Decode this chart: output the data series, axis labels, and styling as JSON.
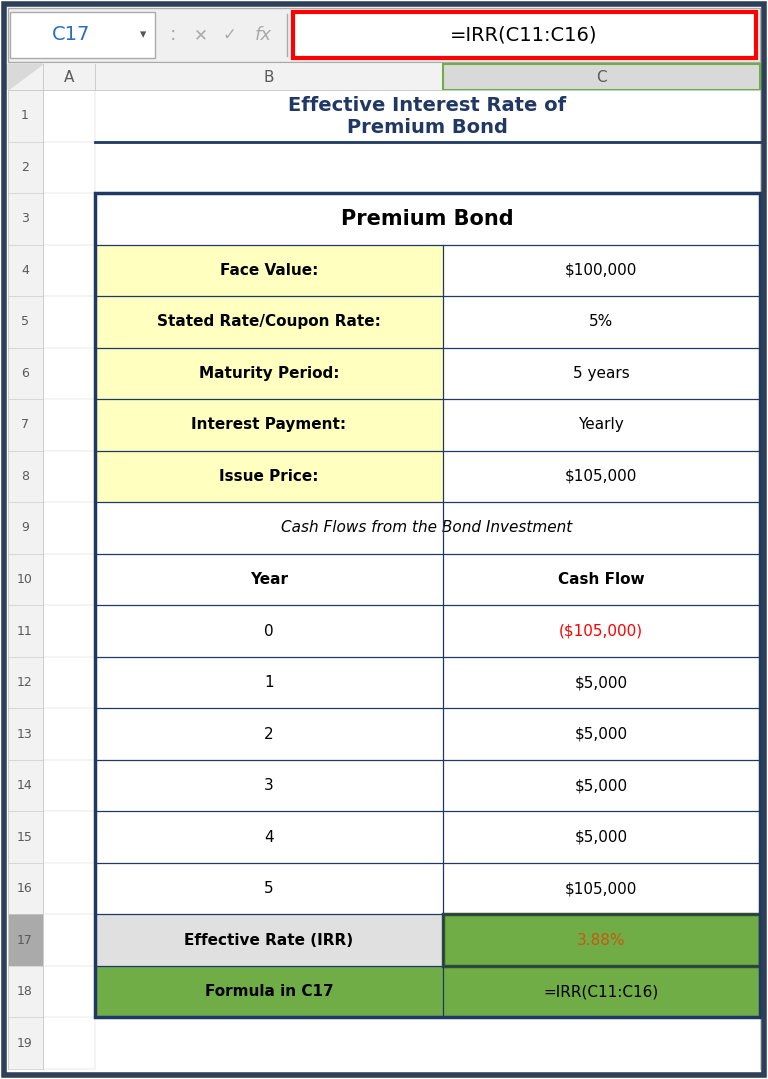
{
  "title_line1": "Effective Interest Rate of",
  "title_line2": "Premium Bond",
  "title_color": "#1F3864",
  "formula_bar_cell": "C17",
  "formula_bar_formula": "=IRR(C11:C16)",
  "outer_border_color": "#1F3864",
  "cell_border_color": "#1F3864",
  "bg_color": "#FFFFFF",
  "formula_box_color": "#FF0000",
  "row_number_color": "#595959",
  "col_header_color": "#595959",
  "light_yellow": "#FFFFC0",
  "green_fill": "#70AD47",
  "green_border": "#375623",
  "irr_orange": "#C55A11",
  "row17_b_bg": "#E0E0E0",
  "fig_border_color": "#2E4057",
  "rows": [
    {
      "num": 1,
      "b": null,
      "c": null,
      "title_row": true
    },
    {
      "num": 2,
      "b": null,
      "c": null
    },
    {
      "num": 3,
      "b": "Premium Bond",
      "c": null,
      "span": true,
      "b_bold": true,
      "b_size": 15,
      "bg": "#FFFFFF"
    },
    {
      "num": 4,
      "b": "Face Value:",
      "c": "$100,000",
      "b_bold": true,
      "bg": "#FFFFC0",
      "c_bg": "#FFFFFF"
    },
    {
      "num": 5,
      "b": "Stated Rate/Coupon Rate:",
      "c": "5%",
      "b_bold": true,
      "bg": "#FFFFC0",
      "c_bg": "#FFFFFF"
    },
    {
      "num": 6,
      "b": "Maturity Period:",
      "c": "5 years",
      "b_bold": true,
      "bg": "#FFFFC0",
      "c_bg": "#FFFFFF"
    },
    {
      "num": 7,
      "b": "Interest Payment:",
      "c": "Yearly",
      "b_bold": true,
      "bg": "#FFFFC0",
      "c_bg": "#FFFFFF"
    },
    {
      "num": 8,
      "b": "Issue Price:",
      "c": "$105,000",
      "b_bold": true,
      "bg": "#FFFFC0",
      "c_bg": "#FFFFFF"
    },
    {
      "num": 9,
      "b": "Cash Flows from the Bond Investment",
      "c": null,
      "span": true,
      "b_italic": true,
      "bg": "#FFFFFF"
    },
    {
      "num": 10,
      "b": "Year",
      "c": "Cash Flow",
      "b_bold": true,
      "c_bold": true,
      "bg": "#FFFFFF",
      "c_bg": "#FFFFFF"
    },
    {
      "num": 11,
      "b": "0",
      "c": "($105,000)",
      "bg": "#FFFFFF",
      "c_bg": "#FFFFFF",
      "c_color": "#FF0000"
    },
    {
      "num": 12,
      "b": "1",
      "c": "$5,000",
      "bg": "#FFFFFF",
      "c_bg": "#FFFFFF"
    },
    {
      "num": 13,
      "b": "2",
      "c": "$5,000",
      "bg": "#FFFFFF",
      "c_bg": "#FFFFFF"
    },
    {
      "num": 14,
      "b": "3",
      "c": "$5,000",
      "bg": "#FFFFFF",
      "c_bg": "#FFFFFF"
    },
    {
      "num": 15,
      "b": "4",
      "c": "$5,000",
      "bg": "#FFFFFF",
      "c_bg": "#FFFFFF"
    },
    {
      "num": 16,
      "b": "5",
      "c": "$105,000",
      "bg": "#FFFFFF",
      "c_bg": "#FFFFFF"
    },
    {
      "num": 17,
      "b": "Effective Rate (IRR)",
      "c": "3.88%",
      "b_bold": true,
      "bg": "#E0E0E0",
      "c_bg": "#70AD47",
      "c_color": "#C55A11",
      "c_border": "#375623"
    },
    {
      "num": 18,
      "b": "Formula in C17",
      "c": "=IRR(C11:C16)",
      "b_bold": true,
      "bg": "#70AD47",
      "c_bg": "#70AD47"
    },
    {
      "num": 19,
      "b": null,
      "c": null
    }
  ]
}
